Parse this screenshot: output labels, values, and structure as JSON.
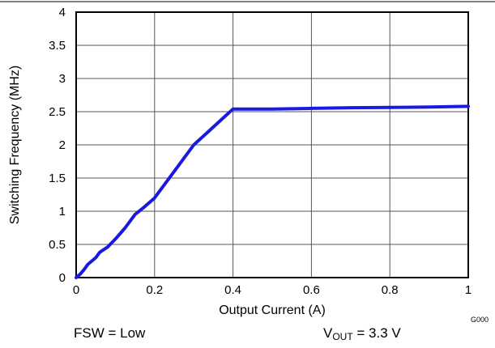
{
  "chart_data": {
    "type": "line",
    "xlabel": "Output Current (A)",
    "ylabel": "Switching Frequency (MHz)",
    "xlim": [
      0,
      1
    ],
    "ylim": [
      0,
      4
    ],
    "xticks": [
      "0",
      "0.2",
      "0.4",
      "0.6",
      "0.8",
      "1"
    ],
    "yticks": [
      "0",
      "0.5",
      "1",
      "1.5",
      "2",
      "2.5",
      "3",
      "3.5",
      "4"
    ],
    "grid": true,
    "line_color": "#1a1adf",
    "series": [
      {
        "x": [
          0,
          0.01,
          0.02,
          0.03,
          0.05,
          0.06,
          0.08,
          0.1,
          0.125,
          0.15,
          0.175,
          0.2,
          0.25,
          0.3,
          0.35,
          0.4,
          0.5,
          0.6,
          0.7,
          0.8,
          0.9,
          1.0
        ],
        "y": [
          0,
          0.05,
          0.12,
          0.2,
          0.3,
          0.38,
          0.46,
          0.58,
          0.75,
          0.95,
          1.07,
          1.2,
          1.6,
          2.0,
          2.27,
          2.54,
          2.54,
          2.55,
          2.56,
          2.565,
          2.57,
          2.58
        ]
      }
    ]
  },
  "graph_id": "G000",
  "notes": {
    "left": "FSW = Low",
    "right_prefix": "V",
    "right_sub": "OUT",
    "right_suffix": " = 3.3 V"
  }
}
